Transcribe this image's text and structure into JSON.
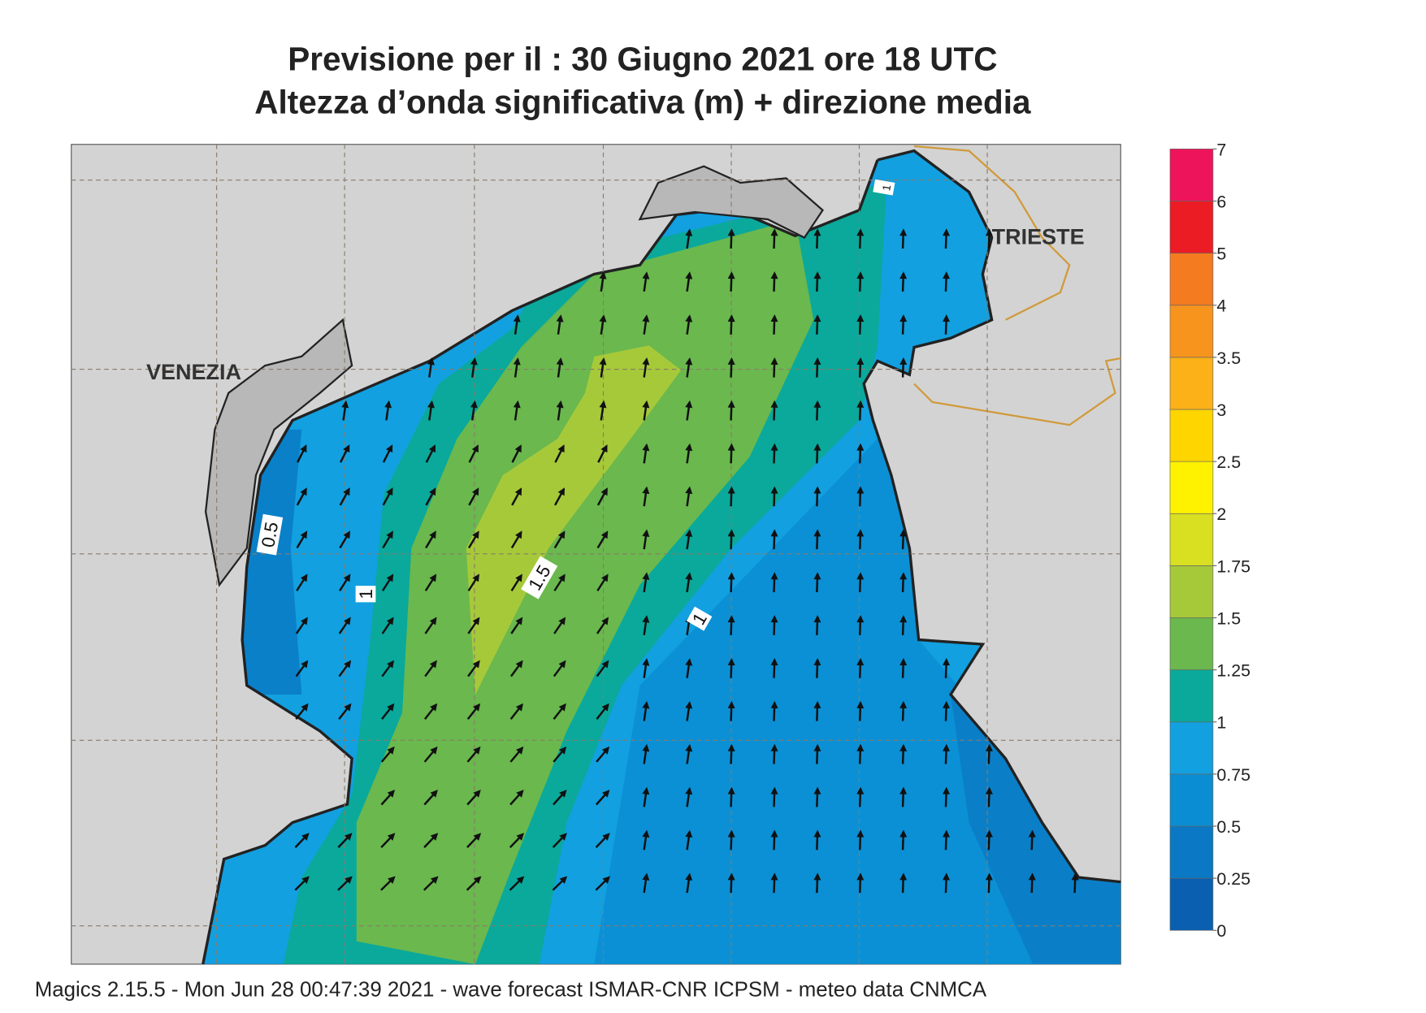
{
  "header": {
    "title_lines": [
      "Previsione per il  :  30   Giugno  2021   ore 18 UTC",
      "Altezza d’onda significativa (m) + direzione media"
    ]
  },
  "places": [
    "VENEZIA",
    "TRIESTE"
  ],
  "contour_labels": [
    0.5,
    1,
    1.5,
    1,
    1
  ],
  "colorbar": {
    "levels": [
      0,
      0.25,
      0.5,
      0.75,
      1,
      1.25,
      1.5,
      1.75,
      2,
      2.5,
      3,
      3.5,
      4,
      5,
      6,
      7
    ],
    "colors": [
      "#0a5fb0",
      "#0a78c4",
      "#0a8dd2",
      "#12a0e0",
      "#0aa99b",
      "#6ab84e",
      "#a6c93a",
      "#d8e021",
      "#fff200",
      "#ffd500",
      "#fbb117",
      "#f7941d",
      "#f47b20",
      "#ec1c24",
      "#ed145b"
    ]
  },
  "footer": "Magics 2.15.5 - Mon Jun 28 00:47:39 2021 - wave forecast  ISMAR-CNR  ICPSM - meteo data   CNMCA"
}
